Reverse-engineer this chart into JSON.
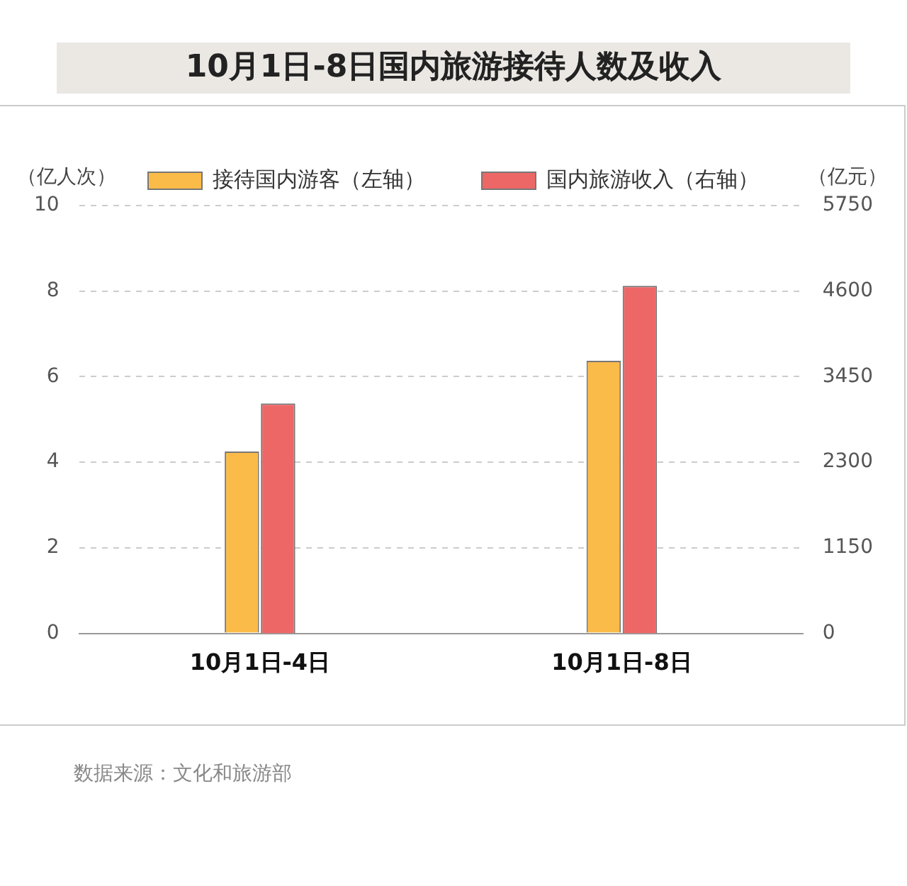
{
  "chart_data": {
    "type": "bar",
    "title": "10月1日-8日国内旅游接待人数及收入",
    "ylabel": "（亿人次）",
    "y2label": "（亿元）",
    "categories": [
      "10月1日-4日",
      "10月1日-8日"
    ],
    "series": [
      {
        "name": "接待国内游客（左轴）",
        "color": "#fbbb48",
        "values": [
          4.25,
          6.37
        ]
      },
      {
        "name": "国内旅游收入（右轴）",
        "color": "#ee6767",
        "values": [
          3090,
          4670
        ],
        "axis": "y2"
      }
    ],
    "ylim": [
      0,
      10
    ],
    "yticks": [
      0,
      2,
      4,
      6,
      8,
      10
    ],
    "y2lim": [
      0,
      5750
    ],
    "y2ticks": [
      0,
      1150,
      2300,
      3450,
      4600,
      5750
    ],
    "grid": "y",
    "legend": "top",
    "annotations": [
      "数据来源：文化和旅游部"
    ]
  }
}
